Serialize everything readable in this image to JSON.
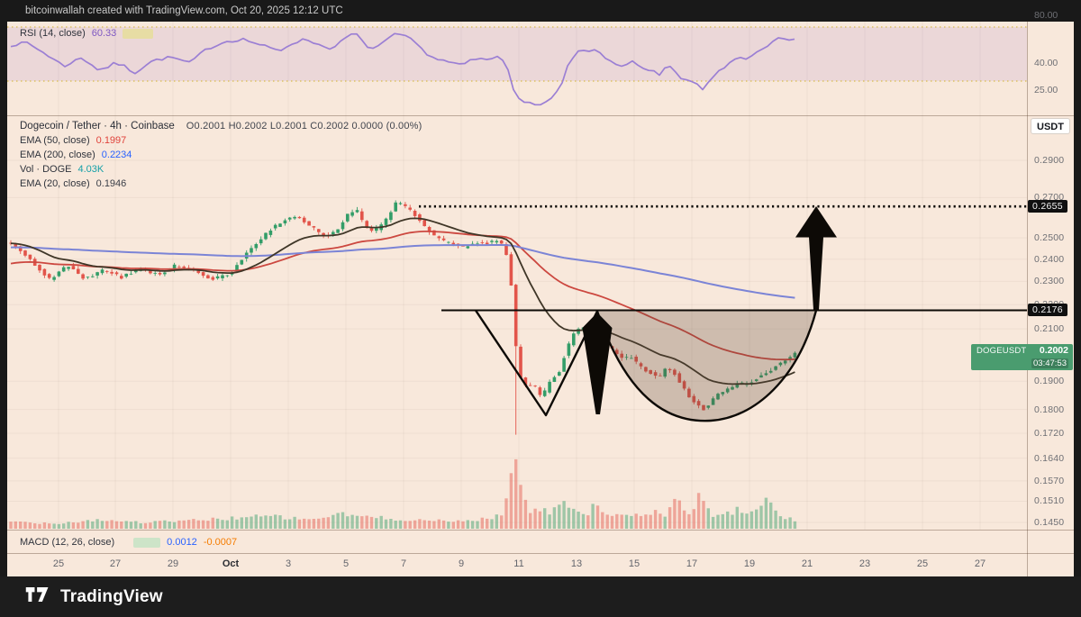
{
  "header": {
    "credit": "bitcoinwallah created with TradingView.com, Oct 20, 2025 12:12 UTC"
  },
  "footer": {
    "brand": "TradingView"
  },
  "colors": {
    "background": "#f8e8db",
    "up": "#339d68",
    "down": "#e2544a",
    "ema20": "#3f3627",
    "ema50": "#cc4840",
    "ema200": "#7b84d6",
    "rsi_line": "#9b7fd4",
    "rsi_band": "rgba(149,103,201,0.13)",
    "rsi_dotted": "#d4b83c",
    "rsi_value_color": "#7e57c2",
    "rsi_ma_swatch": "#e6df8e",
    "macd_hist_swatch": "#bfe3c1",
    "annotation": "#0d0a06",
    "cup_fill": "rgba(92,70,56,0.27)",
    "level_badge_bg": "#101010",
    "price_badge_bg": "#4a9c6f",
    "grid": "rgba(80,50,35,0.055)"
  },
  "rsi_pane": {
    "label": "RSI (14, close)",
    "value": "60.33",
    "axis": [
      {
        "text": "80.00",
        "v": 80
      },
      {
        "text": "40.00",
        "v": 40
      },
      {
        "text": "25.00",
        "v": 25
      }
    ]
  },
  "legend": {
    "title": "Dogecoin / Tether · 4h · Coinbase",
    "ohlc": "O0.2001  H0.2002  L0.2001  C0.2002  0.0000 (0.00%)",
    "indicators": [
      {
        "label": "EMA (50, close)",
        "value": "0.1997",
        "color": "#e0433b"
      },
      {
        "label": "EMA (200, close)",
        "value": "0.2234",
        "color": "#2962ff"
      },
      {
        "label": "Vol · DOGE",
        "value": "4.03K",
        "color": "#16a0a8"
      },
      {
        "label": "EMA (20, close)",
        "value": "0.1946",
        "color": "#3a3e47"
      }
    ]
  },
  "macd_pane": {
    "label": "MACD (12, 26, close)",
    "macd": "0.0012",
    "signal": "-0.0007",
    "macd_color": "#2962ff",
    "signal_color": "#f57c00"
  },
  "price_axis": {
    "currency_button": "USDT",
    "labels": [
      "0.2900",
      "0.2700",
      "0.2500",
      "0.2400",
      "0.2300",
      "0.2200",
      "0.2100",
      "0.1900",
      "0.1800",
      "0.1720",
      "0.1640",
      "0.1570",
      "0.1510",
      "0.1450"
    ],
    "level_badges": [
      {
        "text": "0.2655"
      },
      {
        "text": "0.2176"
      }
    ],
    "price_badge": {
      "symbol": "DOGEUSDT",
      "price": "0.2002",
      "countdown": "03:47:53"
    }
  },
  "time_axis": {
    "ticks": [
      "25",
      "27",
      "29",
      "Oct",
      "3",
      "5",
      "7",
      "9",
      "11",
      "13",
      "15",
      "17",
      "19",
      "21",
      "23",
      "25",
      "27"
    ]
  },
  "chart_data": {
    "type": "candlestick",
    "symbol": "Dogecoin / Tether",
    "ticker": "DOGEUSDT",
    "exchange": "Coinbase",
    "interval": "4h",
    "last_ohlc": {
      "open": 0.2001,
      "high": 0.2002,
      "low": 0.2001,
      "close": 0.2002,
      "change": 0.0,
      "change_pct": "0.00%"
    },
    "indicators": {
      "rsi": {
        "length": 14,
        "source": "close",
        "value": 60.33
      },
      "ema20": 0.1946,
      "ema50": 0.1997,
      "ema200": 0.2234,
      "volume": "4.03K",
      "macd": {
        "fast": 12,
        "slow": 26,
        "source": "close",
        "macd": 0.0012,
        "signal": -0.0007
      }
    },
    "key_levels": {
      "resistance": 0.2176,
      "target": 0.2655
    },
    "ylim": [
      0.145,
      0.29
    ],
    "annotations": [
      {
        "type": "horizontal-line",
        "price": 0.2176
      },
      {
        "type": "dotted-target-line",
        "price": 0.2655
      },
      {
        "type": "v-shape-outline"
      },
      {
        "type": "cup-outline-shaded"
      },
      {
        "type": "down-arrow"
      },
      {
        "type": "up-arrow-to-target"
      }
    ],
    "price_path": [
      [
        12,
        0.2475
      ],
      [
        30,
        0.2412
      ],
      [
        55,
        0.231
      ],
      [
        75,
        0.2371
      ],
      [
        95,
        0.231
      ],
      [
        115,
        0.235
      ],
      [
        135,
        0.2318
      ],
      [
        155,
        0.2358
      ],
      [
        175,
        0.233
      ],
      [
        195,
        0.2371
      ],
      [
        215,
        0.235
      ],
      [
        235,
        0.231
      ],
      [
        255,
        0.233
      ],
      [
        270,
        0.2412
      ],
      [
        285,
        0.2475
      ],
      [
        300,
        0.254
      ],
      [
        315,
        0.2584
      ],
      [
        330,
        0.2607
      ],
      [
        345,
        0.2553
      ],
      [
        360,
        0.2509
      ],
      [
        372,
        0.2527
      ],
      [
        385,
        0.2607
      ],
      [
        395,
        0.2643
      ],
      [
        405,
        0.2553
      ],
      [
        415,
        0.2527
      ],
      [
        428,
        0.2584
      ],
      [
        440,
        0.2675
      ],
      [
        450,
        0.2652
      ],
      [
        460,
        0.2616
      ],
      [
        470,
        0.2562
      ],
      [
        482,
        0.2509
      ],
      [
        492,
        0.2483
      ],
      [
        502,
        0.2475
      ],
      [
        512,
        0.2453
      ],
      [
        522,
        0.2466
      ],
      [
        532,
        0.2483
      ],
      [
        542,
        0.2475
      ],
      [
        552,
        0.2491
      ],
      [
        560,
        0.2453
      ],
      [
        566,
        0.235
      ],
      [
        572,
        0.2047
      ],
      [
        578,
        0.1911
      ],
      [
        585,
        0.1878
      ],
      [
        592,
        0.1894
      ],
      [
        598,
        0.1846
      ],
      [
        605,
        0.1862
      ],
      [
        612,
        0.1911
      ],
      [
        620,
        0.1927
      ],
      [
        628,
        0.2012
      ],
      [
        637,
        0.2082
      ],
      [
        645,
        0.2111
      ],
      [
        652,
        0.2089
      ],
      [
        660,
        0.2118
      ],
      [
        668,
        0.2057
      ],
      [
        676,
        0.203
      ],
      [
        684,
        0.2002
      ],
      [
        692,
        0.198
      ],
      [
        700,
        0.1995
      ],
      [
        708,
        0.196
      ],
      [
        716,
        0.194
      ],
      [
        724,
        0.193
      ],
      [
        732,
        0.1911
      ],
      [
        740,
        0.195
      ],
      [
        748,
        0.193
      ],
      [
        756,
        0.189
      ],
      [
        764,
        0.1846
      ],
      [
        772,
        0.1824
      ],
      [
        780,
        0.18
      ],
      [
        788,
        0.1824
      ],
      [
        796,
        0.185
      ],
      [
        804,
        0.1862
      ],
      [
        812,
        0.1878
      ],
      [
        820,
        0.1894
      ],
      [
        828,
        0.1885
      ],
      [
        836,
        0.1901
      ],
      [
        844,
        0.192
      ],
      [
        852,
        0.193
      ],
      [
        860,
        0.1954
      ],
      [
        868,
        0.197
      ],
      [
        876,
        0.1985
      ],
      [
        882,
        0.2002
      ]
    ],
    "crash_candle": {
      "x": 571,
      "low": 0.1715
    },
    "rsi_path": [
      [
        12,
        55
      ],
      [
        30,
        57
      ],
      [
        50,
        48
      ],
      [
        70,
        38
      ],
      [
        90,
        44
      ],
      [
        110,
        36
      ],
      [
        130,
        40
      ],
      [
        150,
        35
      ],
      [
        170,
        42
      ],
      [
        190,
        45
      ],
      [
        210,
        40
      ],
      [
        230,
        52
      ],
      [
        250,
        58
      ],
      [
        270,
        60
      ],
      [
        290,
        55
      ],
      [
        310,
        50
      ],
      [
        325,
        57
      ],
      [
        340,
        60
      ],
      [
        355,
        55
      ],
      [
        370,
        52
      ],
      [
        385,
        62
      ],
      [
        395,
        65
      ],
      [
        405,
        55
      ],
      [
        415,
        52
      ],
      [
        428,
        58
      ],
      [
        440,
        65
      ],
      [
        450,
        62
      ],
      [
        460,
        58
      ],
      [
        470,
        50
      ],
      [
        482,
        44
      ],
      [
        492,
        42
      ],
      [
        502,
        40
      ],
      [
        512,
        38
      ],
      [
        522,
        42
      ],
      [
        532,
        44
      ],
      [
        542,
        42
      ],
      [
        552,
        46
      ],
      [
        560,
        42
      ],
      [
        566,
        35
      ],
      [
        572,
        22
      ],
      [
        578,
        18
      ],
      [
        585,
        17
      ],
      [
        592,
        19
      ],
      [
        598,
        16
      ],
      [
        605,
        18
      ],
      [
        612,
        20
      ],
      [
        620,
        24
      ],
      [
        628,
        35
      ],
      [
        637,
        45
      ],
      [
        645,
        52
      ],
      [
        652,
        48
      ],
      [
        660,
        52
      ],
      [
        668,
        46
      ],
      [
        676,
        42
      ],
      [
        684,
        40
      ],
      [
        692,
        38
      ],
      [
        700,
        42
      ],
      [
        708,
        38
      ],
      [
        716,
        36
      ],
      [
        724,
        35
      ],
      [
        732,
        33
      ],
      [
        740,
        38
      ],
      [
        748,
        36
      ],
      [
        756,
        32
      ],
      [
        764,
        30
      ],
      [
        772,
        28
      ],
      [
        780,
        26
      ],
      [
        788,
        30
      ],
      [
        796,
        35
      ],
      [
        804,
        38
      ],
      [
        812,
        42
      ],
      [
        820,
        45
      ],
      [
        828,
        44
      ],
      [
        836,
        48
      ],
      [
        844,
        52
      ],
      [
        852,
        55
      ],
      [
        860,
        58
      ],
      [
        868,
        62
      ],
      [
        875,
        60
      ],
      [
        882,
        60.33
      ]
    ],
    "volume_path": [
      [
        12,
        8
      ],
      [
        60,
        6
      ],
      [
        110,
        10
      ],
      [
        160,
        7
      ],
      [
        210,
        9
      ],
      [
        260,
        12
      ],
      [
        300,
        14
      ],
      [
        340,
        10
      ],
      [
        380,
        16
      ],
      [
        420,
        12
      ],
      [
        460,
        10
      ],
      [
        500,
        8
      ],
      [
        530,
        10
      ],
      [
        555,
        14
      ],
      [
        566,
        40
      ],
      [
        571,
        113
      ],
      [
        576,
        55
      ],
      [
        582,
        30
      ],
      [
        590,
        18
      ],
      [
        600,
        22
      ],
      [
        610,
        16
      ],
      [
        622,
        35
      ],
      [
        632,
        28
      ],
      [
        640,
        20
      ],
      [
        650,
        16
      ],
      [
        660,
        25
      ],
      [
        670,
        20
      ],
      [
        680,
        16
      ],
      [
        690,
        14
      ],
      [
        700,
        12
      ],
      [
        710,
        16
      ],
      [
        720,
        14
      ],
      [
        730,
        20
      ],
      [
        740,
        16
      ],
      [
        750,
        30
      ],
      [
        758,
        24
      ],
      [
        766,
        18
      ],
      [
        774,
        35
      ],
      [
        782,
        28
      ],
      [
        790,
        16
      ],
      [
        800,
        14
      ],
      [
        810,
        18
      ],
      [
        820,
        22
      ],
      [
        830,
        16
      ],
      [
        840,
        26
      ],
      [
        850,
        30
      ],
      [
        858,
        22
      ],
      [
        866,
        16
      ],
      [
        874,
        12
      ],
      [
        882,
        10
      ]
    ]
  }
}
